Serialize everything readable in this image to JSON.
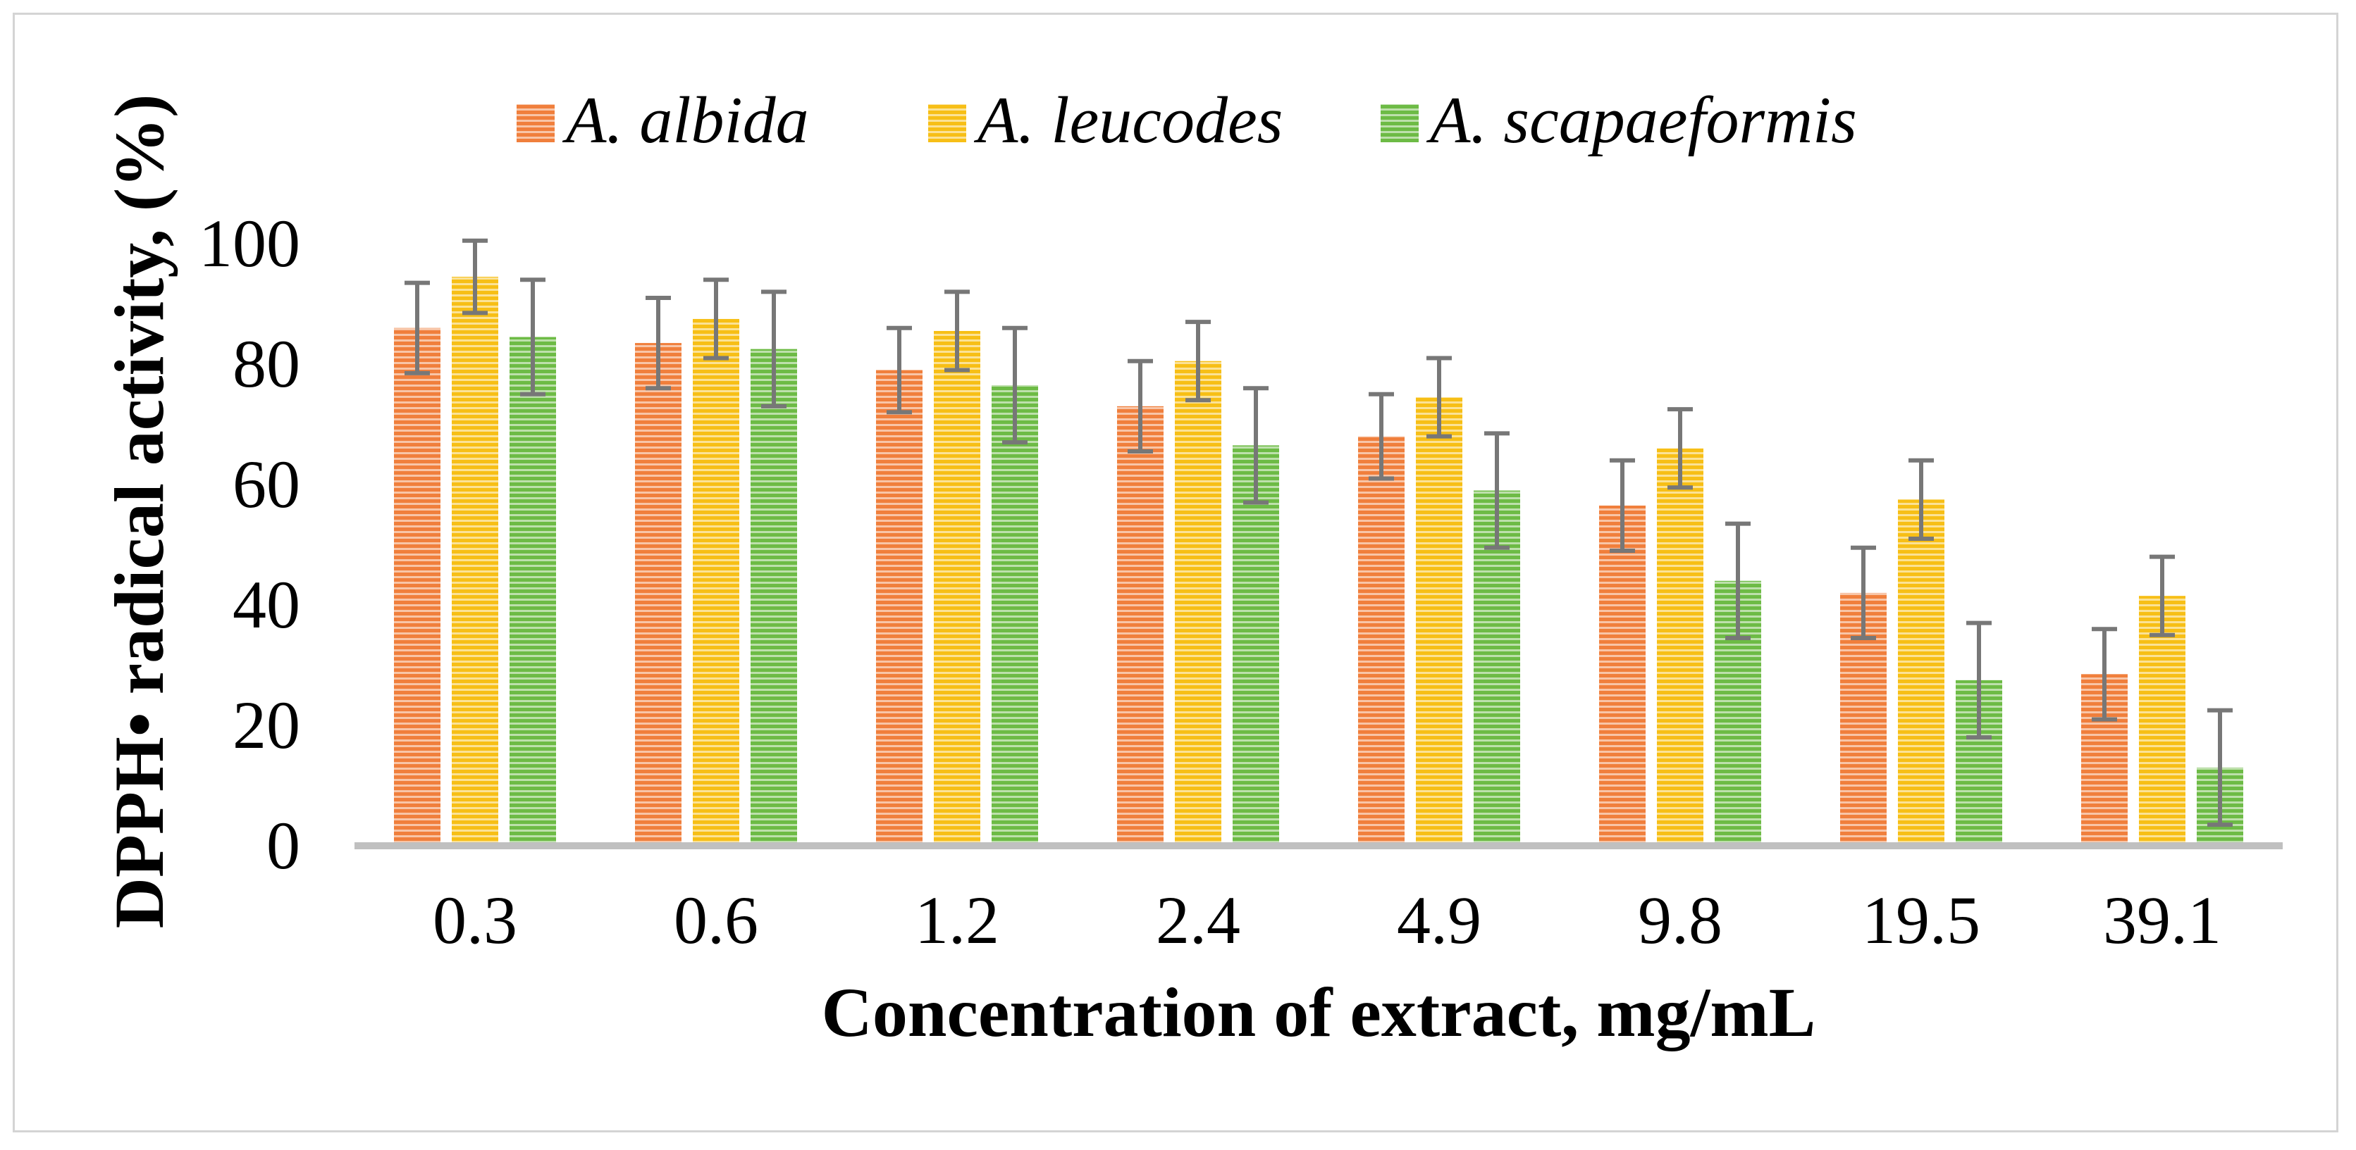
{
  "chart_data": {
    "type": "bar",
    "title": "",
    "xlabel": "Concentration of extract, mg/mL",
    "ylabel": "DPPH• radical activity, (%)",
    "ylim": [
      0,
      100
    ],
    "yticks": [
      0,
      20,
      40,
      60,
      80,
      100
    ],
    "grid": false,
    "legend_position": "top",
    "categories": [
      "0.3",
      "0.6",
      "1.2",
      "2.4",
      "4.9",
      "9.8",
      "19.5",
      "39.1"
    ],
    "series": [
      {
        "name": "A. albida",
        "color": "#f07f3c",
        "values": [
          86,
          83.5,
          79,
          73,
          68,
          56.5,
          42,
          28.5
        ],
        "errors": [
          7.5,
          7.5,
          7,
          7.5,
          7,
          7.5,
          7.5,
          7.5
        ]
      },
      {
        "name": "A. leucodes",
        "color": "#f7bf16",
        "values": [
          94.5,
          87.5,
          85.5,
          80.5,
          74.5,
          66,
          57.5,
          41.5
        ],
        "errors": [
          6,
          6.5,
          6.5,
          6.5,
          6.5,
          6.5,
          6.5,
          6.5
        ]
      },
      {
        "name": "A. scapaeformis",
        "color": "#6dbb45",
        "values": [
          84.5,
          82.5,
          76.5,
          66.5,
          59,
          44,
          27.5,
          13
        ],
        "errors": [
          9.5,
          9.5,
          9.5,
          9.5,
          9.5,
          9.5,
          9.5,
          9.5
        ]
      }
    ]
  }
}
